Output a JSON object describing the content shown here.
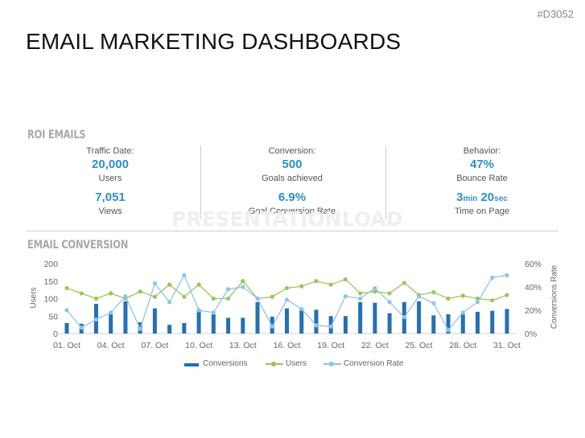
{
  "header": {
    "code": "#D3052",
    "title": "EMAIL MARKETING DASHBOARDS"
  },
  "roi": {
    "label": "ROI EMAILS",
    "columns": [
      {
        "caption": "Traffic Date:",
        "primary_value": "20,000",
        "primary_label": "Users",
        "secondary_value": "7,051",
        "secondary_label": "Views"
      },
      {
        "caption": "Conversion:",
        "primary_value": "500",
        "primary_label": "Goals achieved",
        "secondary_value": "6.9%",
        "secondary_label": "Goal Conversion Rate"
      },
      {
        "caption": "Behavior:",
        "primary_value": "47%",
        "primary_label": "Bounce Rate",
        "secondary_min": "3",
        "secondary_min_unit": "min",
        "secondary_sec": "20",
        "secondary_sec_unit": "sec",
        "secondary_label": "Time on Page"
      }
    ]
  },
  "watermark": "PRESENTATIONLOAD",
  "email_conversion": {
    "label": "EMAIL CONVERSION"
  },
  "colors": {
    "bars": "#2471b3",
    "users_line": "#9bc55a",
    "conversion_line": "#8ec5e8",
    "kpi_accent": "#2e8ecb"
  },
  "chart_data": {
    "type": "bar",
    "categories": [
      "01. Oct",
      "02. Oct",
      "03. Oct",
      "04. Oct",
      "05. Oct",
      "06. Oct",
      "07. Oct",
      "08. Oct",
      "09. Oct",
      "10. Oct",
      "11. Oct",
      "12. Oct",
      "13. Oct",
      "14. Oct",
      "15. Oct",
      "16. Oct",
      "17. Oct",
      "18. Oct",
      "19. Oct",
      "20. Oct",
      "21. Oct",
      "22. Oct",
      "23. Oct",
      "24. Oct",
      "25. Oct",
      "26. Oct",
      "27. Oct",
      "28. Oct",
      "29. Oct",
      "30. Oct",
      "31. Oct"
    ],
    "x_tick_labels": [
      "01. Oct",
      "04. Oct",
      "07. Oct",
      "10. Oct",
      "13. Oct",
      "16. Oct",
      "19. Oct",
      "22. Oct",
      "25. Oct",
      "28. Oct",
      "31. Oct"
    ],
    "series": [
      {
        "name": "Conversions",
        "type": "bar",
        "axis": "left",
        "values": [
          30,
          28,
          85,
          55,
          92,
          32,
          72,
          25,
          30,
          70,
          55,
          45,
          45,
          90,
          48,
          72,
          72,
          68,
          50,
          50,
          90,
          88,
          58,
          90,
          92,
          52,
          55,
          55,
          62,
          65,
          70
        ]
      },
      {
        "name": "Users",
        "type": "line",
        "axis": "left",
        "values": [
          130,
          115,
          100,
          115,
          100,
          120,
          105,
          140,
          105,
          140,
          100,
          100,
          150,
          100,
          105,
          130,
          135,
          150,
          140,
          155,
          115,
          120,
          115,
          145,
          110,
          118,
          100,
          108,
          100,
          95,
          110
        ]
      },
      {
        "name": "Conversion Rate",
        "type": "line",
        "axis": "right",
        "unit": "%",
        "values": [
          20,
          5,
          12,
          18,
          32,
          4,
          43,
          27,
          50,
          20,
          18,
          38,
          40,
          30,
          6,
          29,
          21,
          7,
          6,
          32,
          30,
          39,
          27,
          14,
          32,
          26,
          3,
          18,
          27,
          48,
          50
        ]
      }
    ],
    "ylabel": "Users",
    "ylabel_right": "Conversions Rate",
    "ylim": [
      0,
      200
    ],
    "y_ticks": [
      0,
      50,
      100,
      150,
      200
    ],
    "ylim_right": [
      0,
      60
    ],
    "y_ticks_right": [
      "0%",
      "20%",
      "40%",
      "60%"
    ],
    "grid": false,
    "legend_position": "bottom",
    "legend": [
      "Conversions",
      "Users",
      "Conversion Rate"
    ]
  }
}
